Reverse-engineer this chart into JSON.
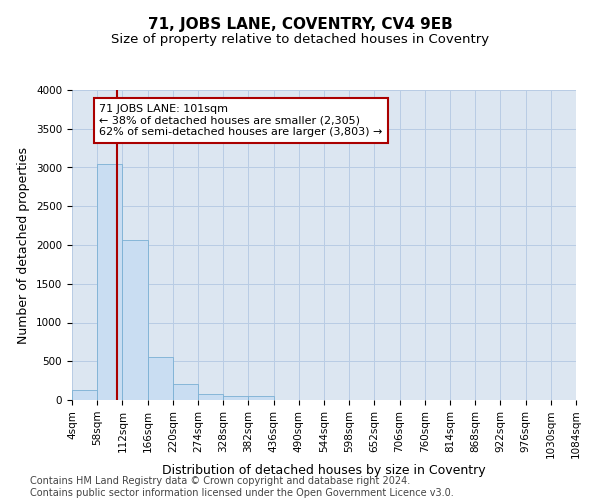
{
  "title": "71, JOBS LANE, COVENTRY, CV4 9EB",
  "subtitle": "Size of property relative to detached houses in Coventry",
  "xlabel": "Distribution of detached houses by size in Coventry",
  "ylabel": "Number of detached properties",
  "footer_line1": "Contains HM Land Registry data © Crown copyright and database right 2024.",
  "footer_line2": "Contains public sector information licensed under the Open Government Licence v3.0.",
  "annotation_line1": "71 JOBS LANE: 101sqm",
  "annotation_line2": "← 38% of detached houses are smaller (2,305)",
  "annotation_line3": "62% of semi-detached houses are larger (3,803) →",
  "bin_edges": [
    4,
    58,
    112,
    166,
    220,
    274,
    328,
    382,
    436,
    490,
    544,
    598,
    652,
    706,
    760,
    814,
    868,
    922,
    976,
    1030,
    1084
  ],
  "bin_counts": [
    130,
    3050,
    2060,
    560,
    210,
    75,
    50,
    50,
    0,
    0,
    0,
    0,
    0,
    0,
    0,
    0,
    0,
    0,
    0,
    0
  ],
  "bar_color": "#c9ddf2",
  "bar_edge_color": "#7aafd4",
  "vline_color": "#aa0000",
  "vline_position": 101,
  "annotation_box_edge_color": "#aa0000",
  "grid_color": "#b8cce4",
  "background_color": "#dce6f1",
  "ylim": [
    0,
    4000
  ],
  "yticks": [
    0,
    500,
    1000,
    1500,
    2000,
    2500,
    3000,
    3500,
    4000
  ],
  "title_fontsize": 11,
  "subtitle_fontsize": 9.5,
  "axis_label_fontsize": 9,
  "tick_fontsize": 7.5,
  "annotation_fontsize": 8,
  "footer_fontsize": 7
}
